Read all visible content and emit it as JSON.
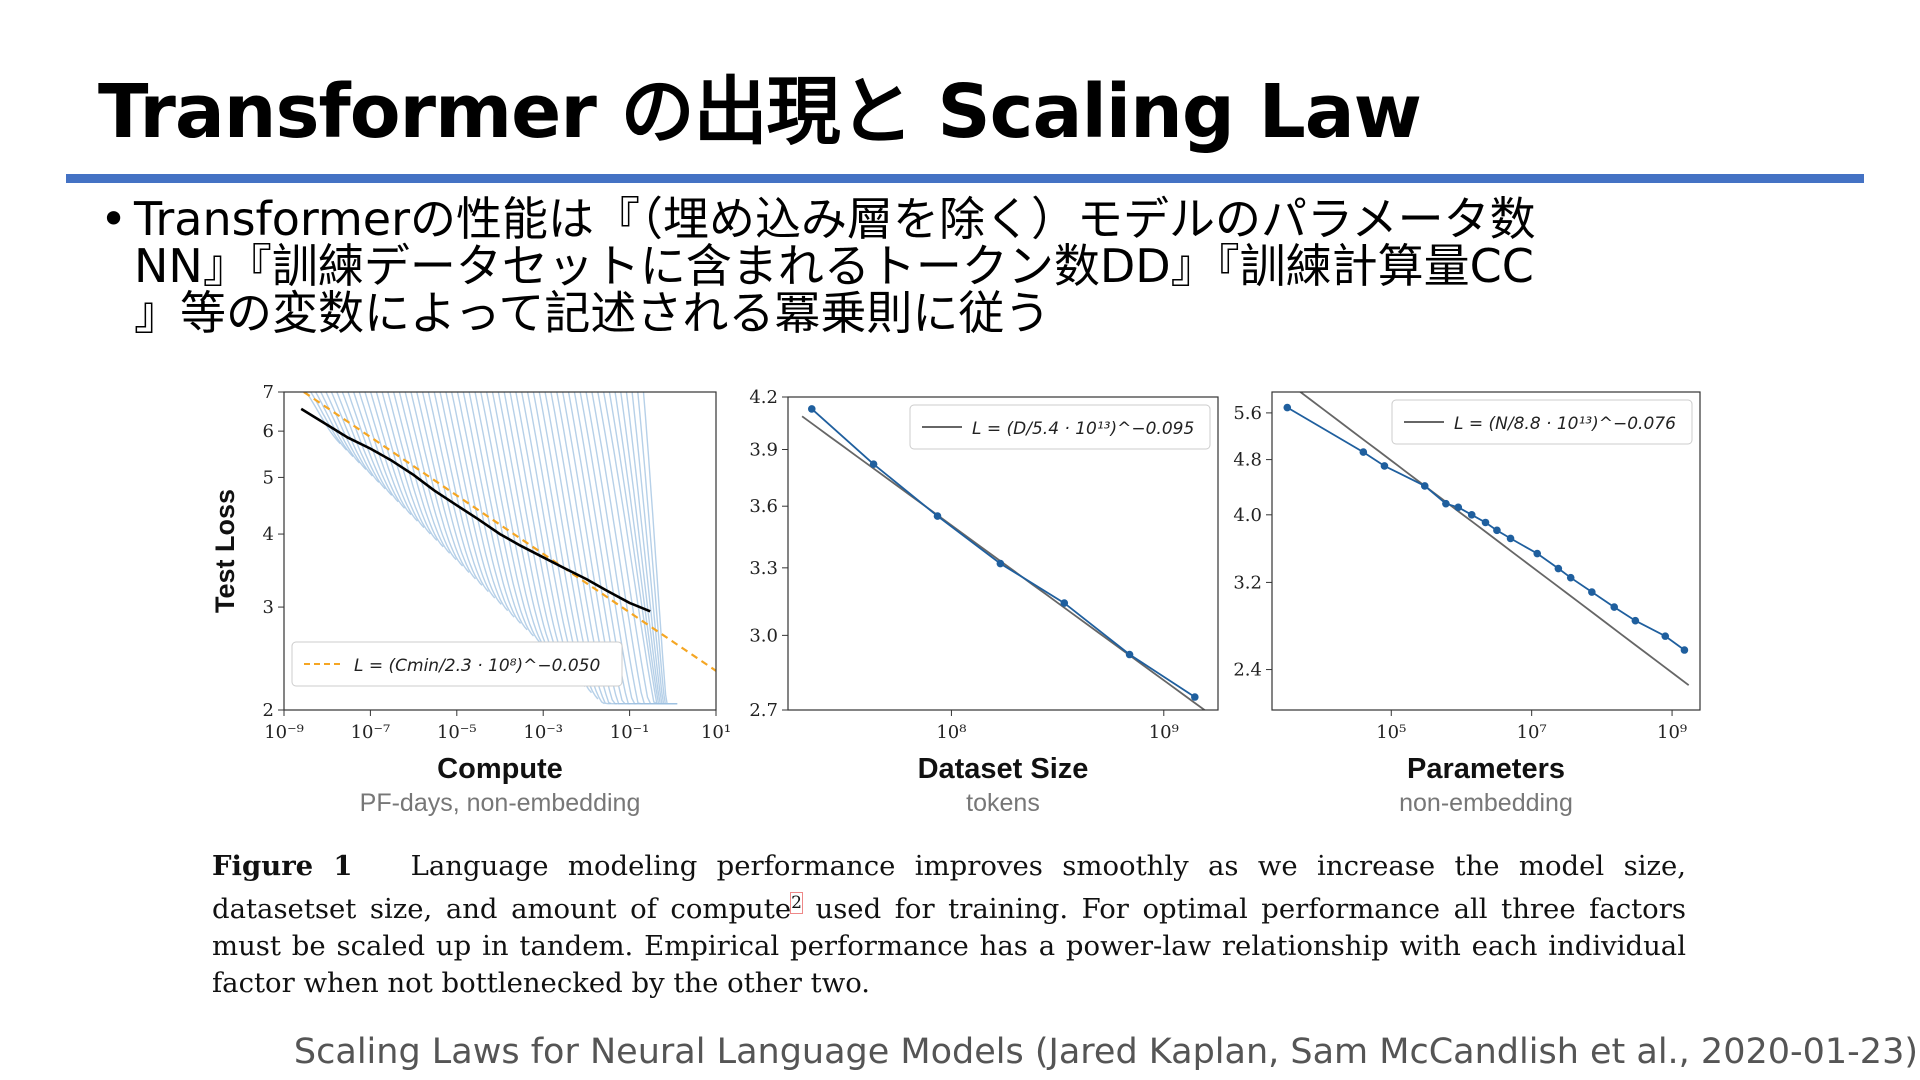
{
  "slide": {
    "title": "Transformer の出現と Scaling Law",
    "bullet_marker": "•",
    "bullet_lines": [
      "Transformerの性能は『（埋め込み層を除く）モデルのパラメータ数",
      "NN』『訓練データセットに含まれるトークン数DD』『訓練計算量CC",
      "』等の変数によって記述される冪乗則に従う"
    ],
    "caption_label": "Figure 1",
    "caption_part1": "Language modeling performance improves smoothly as we increase the model size, datasetset size, and amount of compute",
    "caption_sup": "2",
    "caption_part2": "used for training. For optimal performance all three factors must be scaled up in tandem. Empirical performance has a power-law relationship with each individual factor when not bottlenecked by the other two.",
    "source": "Scaling Laws for Neural Language Models (Jared Kaplan, Sam McCandlish et al., 2020-01-23)"
  },
  "colors": {
    "accent_rule": "#4472c4",
    "curve_light": "#9ec0e0",
    "series": "#1f5f9e",
    "fit": "#666666",
    "frontier": "#000000",
    "dashed_fit": "#f5a623"
  },
  "chart_data": [
    {
      "type": "line",
      "xscale": "log",
      "yscale": "log",
      "xlim": [
        1e-09,
        10
      ],
      "ylim": [
        2,
        7
      ],
      "xlabel": "Compute",
      "xsublabel": "PF-days, non-embedding",
      "ylabel": "Test Loss",
      "xticks": [
        1e-09,
        1e-07,
        1e-05,
        0.001,
        0.1,
        10
      ],
      "xtick_labels": [
        "10⁻⁹",
        "10⁻⁷",
        "10⁻⁵",
        "10⁻³",
        "10⁻¹",
        "10¹"
      ],
      "yticks": [
        2,
        3,
        4,
        5,
        6,
        7
      ],
      "ytick_labels": [
        "2",
        "3",
        "4",
        "5",
        "6",
        "7"
      ],
      "legend": "L = (Cmin/2.3 · 10⁸)^−0.050",
      "legend_position": "lower-left",
      "fit": {
        "c": 230000000.0,
        "alpha": 0.05
      },
      "frontier": {
        "x": [
          2.5e-09,
          1e-08,
          3e-08,
          1e-07,
          3e-07,
          1e-06,
          3e-06,
          1e-05,
          3e-05,
          0.0001,
          0.0003,
          0.001,
          0.003,
          0.01,
          0.03,
          0.1,
          0.3
        ],
        "y": [
          6.55,
          6.15,
          5.85,
          5.6,
          5.35,
          5.05,
          4.75,
          4.48,
          4.25,
          4.0,
          3.82,
          3.65,
          3.5,
          3.35,
          3.2,
          3.05,
          2.95
        ]
      },
      "training_curves": 60
    },
    {
      "type": "line",
      "xscale": "log",
      "yscale": "log",
      "xlim": [
        17000000.0,
        1800000000.0
      ],
      "ylim": [
        2.7,
        4.2
      ],
      "xlabel": "Dataset Size",
      "xsublabel": "tokens",
      "ylabel": "",
      "xticks": [
        100000000.0,
        1000000000.0
      ],
      "xtick_labels": [
        "10⁸",
        "10⁹"
      ],
      "yticks": [
        2.7,
        3.0,
        3.3,
        3.6,
        3.9,
        4.2
      ],
      "ytick_labels": [
        "2.7",
        "3.0",
        "3.3",
        "3.6",
        "3.9",
        "4.2"
      ],
      "legend": "L = (D/5.4 · 10¹³)^−0.095",
      "legend_position": "top-right",
      "fit": {
        "c": 54000000000000.0,
        "alpha": 0.095
      },
      "series": [
        {
          "x": [
            22000000.0,
            43000000.0,
            86000000.0,
            170000000.0,
            340000000.0,
            690000000.0,
            1400000000.0
          ],
          "y": [
            4.13,
            3.82,
            3.55,
            3.32,
            3.14,
            2.92,
            2.75
          ]
        }
      ]
    },
    {
      "type": "line",
      "xscale": "log",
      "yscale": "log",
      "xlim": [
        2000.0,
        2500000000.0
      ],
      "ylim": [
        2.1,
        6.0
      ],
      "xlabel": "Parameters",
      "xsublabel": "non-embedding",
      "ylabel": "",
      "xticks": [
        100000.0,
        10000000.0,
        1000000000.0
      ],
      "xtick_labels": [
        "10⁵",
        "10⁷",
        "10⁹"
      ],
      "yticks": [
        2.4,
        3.2,
        4.0,
        4.8,
        5.6
      ],
      "ytick_labels": [
        "2.4",
        "3.2",
        "4.0",
        "4.8",
        "5.6"
      ],
      "legend": "L = (N/8.8 · 10¹³)^−0.076",
      "legend_position": "top-right",
      "fit": {
        "c": 88000000000000.0,
        "alpha": 0.076
      },
      "series": [
        {
          "x": [
            3300.0,
            40000.0,
            80000.0,
            300000.0,
            600000.0,
            900000.0,
            1400000.0,
            2200000.0,
            3200000.0,
            5000000.0,
            12000000.0,
            24000000.0,
            36000000.0,
            72000000.0,
            150000000.0,
            300000000.0,
            800000000.0,
            1500000000.0
          ],
          "y": [
            5.7,
            4.92,
            4.7,
            4.4,
            4.15,
            4.1,
            4.0,
            3.9,
            3.8,
            3.7,
            3.52,
            3.35,
            3.25,
            3.1,
            2.95,
            2.82,
            2.68,
            2.56
          ]
        }
      ]
    }
  ]
}
